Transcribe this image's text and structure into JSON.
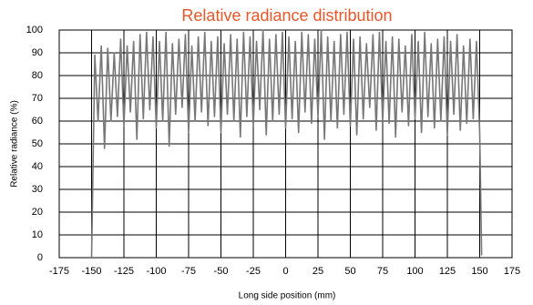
{
  "chart_data": {
    "type": "line",
    "title": "Relative radiance distribution",
    "x_label": "Long side position (mm)",
    "y_label": "Relative radiance (%)",
    "x": [
      -150,
      -147.5,
      -145,
      -142.5,
      -140,
      -137.5,
      -135,
      -132.5,
      -130,
      -127.5,
      -125,
      -122.5,
      -120,
      -117.5,
      -115,
      -112.5,
      -110,
      -107.5,
      -105,
      -102.5,
      -100,
      -97.5,
      -95,
      -92.5,
      -90,
      -87.5,
      -85,
      -82.5,
      -80,
      -77.5,
      -75,
      -72.5,
      -70,
      -67.5,
      -65,
      -62.5,
      -60,
      -57.5,
      -55,
      -52.5,
      -50,
      -47.5,
      -45,
      -42.5,
      -40,
      -37.5,
      -35,
      -32.5,
      -30,
      -27.5,
      -25,
      -22.5,
      -20,
      -17.5,
      -15,
      -12.5,
      -10,
      -7.5,
      -5,
      -2.5,
      0,
      2.5,
      5,
      7.5,
      10,
      12.5,
      15,
      17.5,
      20,
      22.5,
      25,
      27.5,
      30,
      32.5,
      35,
      37.5,
      40,
      42.5,
      45,
      47.5,
      50,
      52.5,
      55,
      57.5,
      60,
      62.5,
      65,
      67.5,
      70,
      72.5,
      75,
      77.5,
      80,
      82.5,
      85,
      87.5,
      90,
      92.5,
      95,
      97.5,
      100,
      102.5,
      105,
      107.5,
      110,
      112.5,
      115,
      117.5,
      120,
      122.5,
      125,
      127.5,
      130,
      132.5,
      135,
      137.5,
      140,
      142.5,
      145,
      147.5,
      150,
      151.5
    ],
    "values": [
      0,
      89,
      60,
      93,
      48,
      92,
      60,
      90,
      62,
      96,
      58,
      93,
      64,
      95,
      52,
      98,
      61,
      99,
      65,
      97,
      57,
      95,
      60,
      99,
      49,
      94,
      63,
      96,
      66,
      98,
      55,
      93,
      60,
      97,
      64,
      99,
      58,
      95,
      62,
      97,
      55,
      94,
      63,
      98,
      60,
      96,
      53,
      99,
      62,
      97,
      58,
      95,
      65,
      100,
      54,
      96,
      60,
      98,
      63,
      99,
      57,
      97,
      61,
      95,
      55,
      99,
      64,
      98,
      59,
      96,
      62,
      100,
      52,
      97,
      60,
      95,
      57,
      98,
      63,
      99,
      58,
      96,
      54,
      97,
      61,
      94,
      66,
      98,
      56,
      99,
      60,
      95,
      59,
      97,
      53,
      96,
      64,
      93,
      58,
      98,
      61,
      95,
      55,
      99,
      62,
      94,
      57,
      96,
      60,
      97,
      54,
      95,
      63,
      98,
      56,
      93,
      59,
      96,
      61,
      95,
      55,
      1
    ],
    "color": "#777777",
    "xlim": [
      -175,
      175
    ],
    "xticks": [
      -175,
      -150,
      -125,
      -100,
      -75,
      -50,
      -25,
      0,
      25,
      50,
      75,
      100,
      125,
      150,
      175
    ],
    "ylim": [
      0,
      100
    ],
    "yticks": [
      0,
      10,
      20,
      30,
      40,
      50,
      60,
      70,
      80,
      90,
      100
    ],
    "grid": true
  }
}
